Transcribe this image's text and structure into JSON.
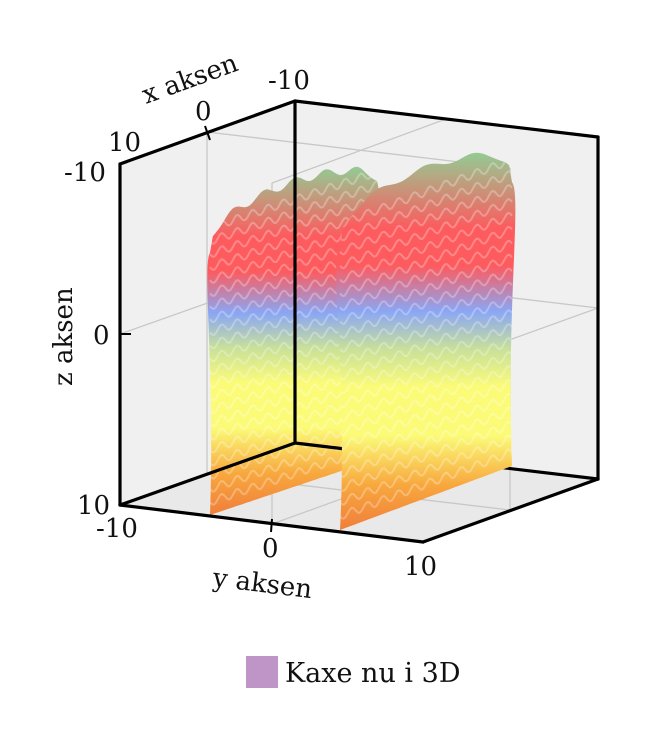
{
  "chart_data": {
    "type": "surface3d",
    "x_axis": {
      "label": "x aksen",
      "range": [
        -10,
        10
      ],
      "ticks": [
        "10",
        "0",
        "-10"
      ]
    },
    "y_axis": {
      "label": "y aksen",
      "range": [
        -10,
        10
      ],
      "ticks": [
        "-10",
        "0",
        "10"
      ]
    },
    "z_axis": {
      "label": "z aksen",
      "range": [
        -10,
        10
      ],
      "ticks": [
        "-10",
        "0",
        "10"
      ]
    },
    "grid": true,
    "legend": {
      "placement": "bottom-center",
      "entries": [
        {
          "label": "Kaxe nu i 3D",
          "color": "#bf94c6"
        }
      ]
    },
    "colors": {
      "surface_gradient": [
        "#f07e3a",
        "#f8a83e",
        "#fbfb78",
        "#c8e09a",
        "#8aa6f5",
        "#fd5b5e",
        "#93cb93"
      ],
      "pane": "#f0f0f0",
      "grid": "#c8c8c8",
      "frame": "#000000"
    }
  }
}
